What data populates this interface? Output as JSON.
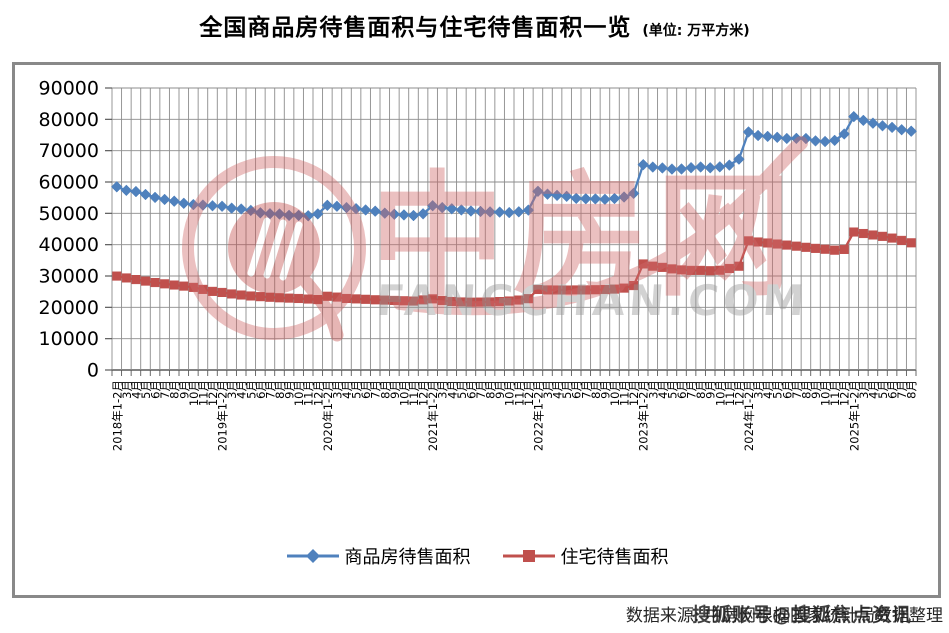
{
  "title": {
    "main": "全国商品房待售面积与住宅待售面积一览",
    "unit": "(单位: 万平方米)"
  },
  "footer": {
    "source": "数据来源: 中房网根据国家统计局数据整理",
    "overlay_watermark": "搜狐账号@搜狐焦点资讯"
  },
  "watermark": {
    "brand": "中房网",
    "domain": "FANGCHAN.COM"
  },
  "colors": {
    "commodity_blue": "#4F81BD",
    "residential_red": "#C0504D",
    "gridline": "#8C8C8C",
    "axis": "#595959",
    "watermark_pink": "#D06A6A",
    "watermark_gray": "#969696"
  },
  "chart_data": {
    "type": "line",
    "title": "全国商品房待售面积与住宅待售面积一览",
    "unit": "万平方米",
    "ylim": [
      0,
      90000
    ],
    "ytick_step": 10000,
    "yticks": [
      0,
      10000,
      20000,
      30000,
      40000,
      50000,
      60000,
      70000,
      80000,
      90000
    ],
    "grid": "both",
    "legend_position": "bottom",
    "categories": [
      "2018年1-2月",
      "3月",
      "4月",
      "5月",
      "6月",
      "7月",
      "8月",
      "9月",
      "10月",
      "11月",
      "12月",
      "2019年1-2月",
      "3月",
      "4月",
      "5月",
      "6月",
      "7月",
      "8月",
      "9月",
      "10月",
      "11月",
      "12月",
      "2020年1-2月",
      "3月",
      "4月",
      "5月",
      "6月",
      "7月",
      "8月",
      "9月",
      "10月",
      "11月",
      "12月",
      "2021年1-2月",
      "3月",
      "4月",
      "5月",
      "6月",
      "7月",
      "8月",
      "9月",
      "10月",
      "11月",
      "12月",
      "2022年1-2月",
      "3月",
      "4月",
      "5月",
      "6月",
      "7月",
      "8月",
      "9月",
      "10月",
      "11月",
      "12月",
      "2023年1-2月",
      "3月",
      "4月",
      "5月",
      "6月",
      "7月",
      "8月",
      "9月",
      "10月",
      "11月",
      "12月",
      "2024年1-2月",
      "3月",
      "4月",
      "5月",
      "6月",
      "7月",
      "8月",
      "9月",
      "10月",
      "11月",
      "12月",
      "2025年1-2月",
      "3月",
      "4月",
      "5月",
      "6月",
      "7月",
      "8月"
    ],
    "series": [
      {
        "name": "商品房待售面积",
        "color": "#4F81BD",
        "marker": "diamond",
        "values": [
          58468,
          57329,
          56941,
          56010,
          55083,
          54428,
          53873,
          53191,
          52789,
          52627,
          52414,
          52251,
          51646,
          51380,
          50928,
          50162,
          49876,
          49784,
          49346,
          49323,
          49221,
          49821,
          52563,
          52255,
          51825,
          51478,
          51083,
          50691,
          50052,
          49707,
          49492,
          49287,
          49850,
          52425,
          51835,
          51449,
          51087,
          50738,
          50612,
          50468,
          50385,
          50246,
          50492,
          51023,
          57026,
          56113,
          55735,
          55433,
          54784,
          54655,
          54605,
          54467,
          54734,
          55203,
          56366,
          65528,
          64770,
          64487,
          64120,
          64159,
          64564,
          64795,
          64537,
          64835,
          65385,
          67295,
          75969,
          74833,
          74553,
          74256,
          73894,
          73926,
          73871,
          73130,
          72919,
          73286,
          75327,
          80864,
          79664,
          78764,
          77941,
          77432,
          76686,
          76213
        ]
      },
      {
        "name": "住宅待售面积",
        "color": "#C0504D",
        "marker": "square",
        "values": [
          29971,
          29387,
          28866,
          28366,
          27914,
          27508,
          27114,
          26765,
          26372,
          25731,
          25091,
          24749,
          24281,
          23933,
          23624,
          23408,
          23217,
          23056,
          22931,
          22824,
          22643,
          22473,
          23533,
          23264,
          22824,
          22704,
          22564,
          22414,
          22304,
          22204,
          22094,
          21994,
          22379,
          22711,
          22183,
          21872,
          21727,
          21639,
          21672,
          21731,
          21839,
          22031,
          22319,
          22761,
          25699,
          25564,
          25538,
          25521,
          25559,
          25549,
          25619,
          25688,
          25813,
          26128,
          26947,
          33852,
          33130,
          32759,
          32279,
          31946,
          31793,
          31799,
          31683,
          31836,
          32403,
          33119,
          41223,
          40864,
          40544,
          40206,
          39863,
          39514,
          39160,
          38821,
          38542,
          38231,
          38484,
          44033,
          43558,
          43089,
          42656,
          42094,
          41361,
          40598
        ]
      }
    ]
  }
}
